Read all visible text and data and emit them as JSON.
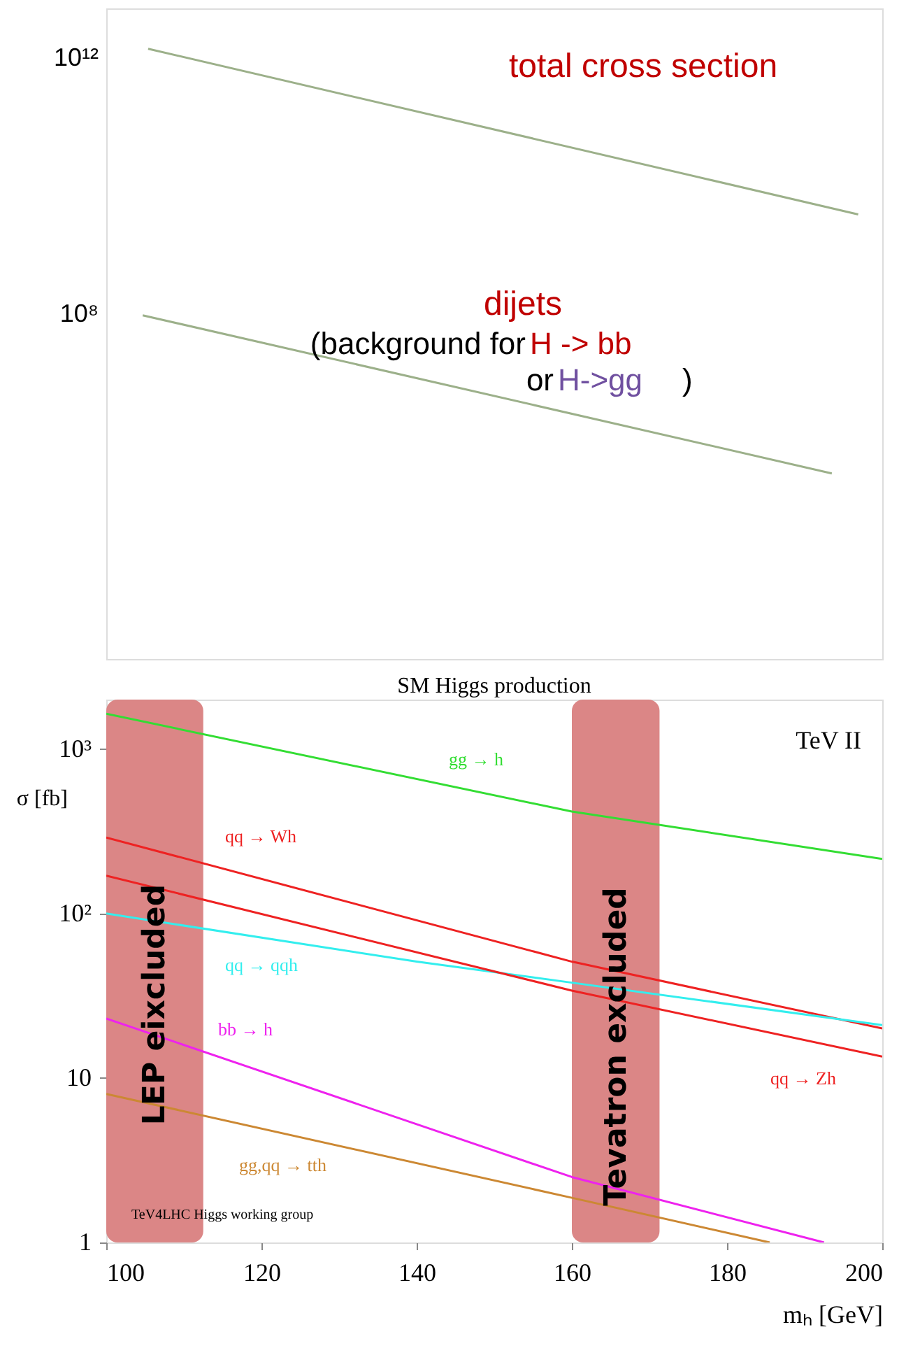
{
  "chart_data": [
    {
      "type": "line",
      "xlim": [
        100,
        200
      ],
      "ylim": [
        400,
        6000000000000
      ],
      "log": true,
      "tick_labels": "y",
      "grid": false,
      "marker": "none",
      "line_style": "solid",
      "yticks": [
        {
          "value": 1000000000000,
          "label": "10¹²"
        },
        {
          "value": 100000000,
          "label": "10⁸"
        }
      ],
      "series": [
        {
          "name": "total cross section",
          "color": "#9cb08a",
          "x": [
            105.4,
            196.9
          ],
          "values": [
            1400000000000,
            3600000000
          ]
        },
        {
          "name": "dijets",
          "color": "#9cb08a",
          "x": [
            104.7,
            193.5
          ],
          "values": [
            95000000,
            320000
          ]
        }
      ],
      "annotations": [
        "(background for ",
        "H -> bb",
        "or ",
        "H->gg",
        ")"
      ]
    },
    {
      "type": "line",
      "title": "SM Higgs production",
      "xlabel": "mₕ [GeV]",
      "ylabel": "σ [fb]",
      "xlim": [
        100,
        200
      ],
      "ylim": [
        1,
        2000
      ],
      "log": true,
      "grid": false,
      "marker": "none",
      "line_style": "solid",
      "xticks": [
        100,
        120,
        140,
        160,
        180,
        200
      ],
      "yticks": [
        1,
        10,
        {
          "value": 100,
          "label": "10²"
        },
        {
          "value": 1000,
          "label": "10³"
        }
      ],
      "series": [
        {
          "name": "gg → h",
          "color": "#33dd33",
          "x": [
            100,
            160,
            200
          ],
          "values": [
            1640,
            417,
            215
          ]
        },
        {
          "name": "qq → Wh",
          "color": "#ee2222",
          "x": [
            100,
            160,
            200
          ],
          "values": [
            290,
            51,
            20
          ]
        },
        {
          "name": "qq → qqh",
          "color": "#33eeee",
          "x": [
            100,
            140,
            160,
            200
          ],
          "values": [
            100,
            51,
            38,
            21
          ]
        },
        {
          "name": "bb → h",
          "color": "#ee22ee",
          "x": [
            100,
            160,
            192.5
          ],
          "values": [
            23,
            2.5,
            1
          ]
        },
        {
          "name": "gg,qq → tth",
          "color": "#cc8833",
          "x": [
            100,
            160,
            185.5
          ],
          "values": [
            8,
            1.87,
            1
          ]
        },
        {
          "name": "qq → Zh",
          "color": "#ee2222",
          "x": [
            100,
            160,
            200
          ],
          "values": [
            170,
            34,
            13.5
          ]
        }
      ],
      "bands": [
        {
          "axis": "x",
          "from": 100,
          "to": 112.5,
          "label": "LEP eixcluded",
          "color": "#d98080"
        },
        {
          "axis": "x",
          "from": 160,
          "to": 171.3,
          "label": "Tevatron excluded",
          "color": "#d98080"
        }
      ],
      "annotations": [
        "TeV II",
        "TeV4LHC Higgs working group"
      ]
    }
  ]
}
